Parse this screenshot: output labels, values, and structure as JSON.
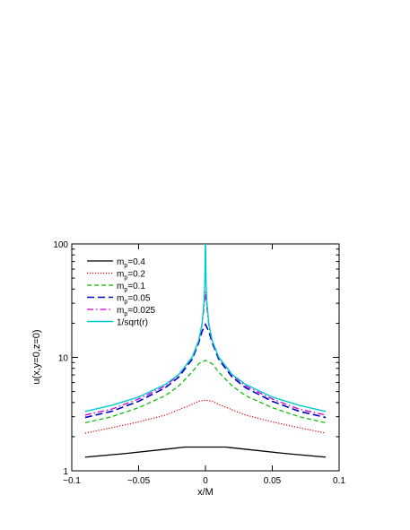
{
  "chart_data": {
    "type": "line",
    "xlabel": "x/M",
    "ylabel": "u(x,y=0,z=0)",
    "xlim": [
      -0.1,
      0.1
    ],
    "ylim": [
      1,
      100
    ],
    "yscale": "log",
    "grid": false,
    "legend_position": "top-left",
    "x_ticks": [
      -0.1,
      -0.05,
      0,
      0.05,
      0.1
    ],
    "x_tick_labels": [
      "−0.1",
      "−0.05",
      "0",
      "0.05",
      "0.1"
    ],
    "y_ticks": [
      1,
      10,
      100
    ],
    "y_tick_labels": [
      "1",
      "10",
      "100"
    ],
    "series": [
      {
        "name": "m_p=0.4",
        "label_main": "m",
        "label_sub": "p",
        "label_rest": "=0.4",
        "color": "#000000",
        "dash": "",
        "width": 1.3,
        "x": [
          -0.09,
          -0.06,
          -0.03,
          -0.015,
          0,
          0.015,
          0.03,
          0.06,
          0.09
        ],
        "y": [
          1.32,
          1.42,
          1.55,
          1.62,
          1.62,
          1.62,
          1.55,
          1.42,
          1.32
        ]
      },
      {
        "name": "m_p=0.2",
        "label_main": "m",
        "label_sub": "p",
        "label_rest": "=0.2",
        "color": "#dd0000",
        "dash": "1.2,1.8",
        "width": 1.2,
        "x": [
          -0.09,
          -0.07,
          -0.05,
          -0.03,
          -0.02,
          -0.01,
          -0.005,
          0,
          0.005,
          0.01,
          0.02,
          0.03,
          0.05,
          0.07,
          0.09
        ],
        "y": [
          2.15,
          2.4,
          2.7,
          3.1,
          3.45,
          3.85,
          4.1,
          4.2,
          4.1,
          3.85,
          3.45,
          3.1,
          2.7,
          2.4,
          2.15
        ]
      },
      {
        "name": "m_p=0.1",
        "label_main": "m",
        "label_sub": "p",
        "label_rest": "=0.1",
        "color": "#00bb00",
        "dash": "5,3",
        "width": 1.2,
        "x": [
          -0.09,
          -0.07,
          -0.05,
          -0.03,
          -0.02,
          -0.01,
          -0.005,
          0,
          0.005,
          0.01,
          0.02,
          0.03,
          0.05,
          0.07,
          0.09
        ],
        "y": [
          2.65,
          3.0,
          3.6,
          4.6,
          5.6,
          7.4,
          8.8,
          9.4,
          8.8,
          7.4,
          5.6,
          4.6,
          3.6,
          3.0,
          2.65
        ]
      },
      {
        "name": "m_p=0.05",
        "label_main": "m",
        "label_sub": "p",
        "label_rest": "=0.05",
        "color": "#0000cc",
        "dash": "8,4",
        "width": 1.6,
        "x": [
          -0.09,
          -0.07,
          -0.05,
          -0.03,
          -0.02,
          -0.01,
          -0.005,
          -0.0025,
          0,
          0.0025,
          0.005,
          0.01,
          0.02,
          0.03,
          0.05,
          0.07,
          0.09
        ],
        "y": [
          2.95,
          3.35,
          4.1,
          5.4,
          6.7,
          9.6,
          13.5,
          17.0,
          19.5,
          17.0,
          13.5,
          9.6,
          6.7,
          5.4,
          4.1,
          3.35,
          2.95
        ]
      },
      {
        "name": "m_p=0.025",
        "label_main": "m",
        "label_sub": "p",
        "label_rest": "=0.025",
        "color": "#cc00cc",
        "dash": "7,3,1.5,3",
        "width": 1.3,
        "x": [
          -0.09,
          -0.07,
          -0.05,
          -0.03,
          -0.02,
          -0.01,
          -0.005,
          -0.0025,
          -0.001,
          0,
          0.001,
          0.0025,
          0.005,
          0.01,
          0.02,
          0.03,
          0.05,
          0.07,
          0.09
        ],
        "y": [
          3.1,
          3.5,
          4.3,
          5.6,
          7.0,
          10.0,
          14.0,
          19.5,
          28.0,
          38.0,
          28.0,
          19.5,
          14.0,
          10.0,
          7.0,
          5.6,
          4.3,
          3.5,
          3.1
        ]
      },
      {
        "name": "1/sqrt(r)",
        "label_main": "1/sqrt(r)",
        "label_sub": "",
        "label_rest": "",
        "color": "#00cccc",
        "dash": "",
        "width": 1.4,
        "x": [
          -0.09,
          -0.07,
          -0.05,
          -0.03,
          -0.02,
          -0.01,
          -0.005,
          -0.0025,
          -0.001,
          -0.0005,
          -0.0001
        ],
        "x_mirror": true,
        "formula": "1/sqrt(|x|)"
      }
    ]
  }
}
